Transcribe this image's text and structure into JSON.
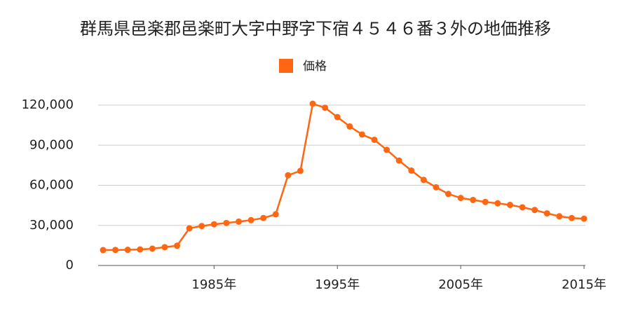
{
  "chart_data": {
    "type": "line",
    "title": "群馬県邑楽郡邑楽町大字中野字下宿４５４６番３外の地価推移",
    "x": [
      1976,
      1977,
      1978,
      1979,
      1980,
      1981,
      1982,
      1983,
      1984,
      1985,
      1986,
      1987,
      1988,
      1989,
      1990,
      1991,
      1992,
      1993,
      1994,
      1995,
      1996,
      1997,
      1998,
      1999,
      2000,
      2001,
      2002,
      2003,
      2004,
      2005,
      2006,
      2007,
      2008,
      2009,
      2010,
      2011,
      2012,
      2013,
      2014,
      2015
    ],
    "series": [
      {
        "name": "価格",
        "color": "#ff6611",
        "values": [
          11500,
          11600,
          11700,
          12000,
          12600,
          13700,
          14800,
          27800,
          29500,
          30800,
          31800,
          32800,
          33900,
          35500,
          38300,
          67500,
          70800,
          121000,
          118000,
          111000,
          104000,
          98000,
          94000,
          86500,
          78500,
          71000,
          64000,
          58500,
          53500,
          50500,
          49000,
          47500,
          46500,
          45300,
          43500,
          41500,
          39000,
          36800,
          35500,
          35000
        ]
      }
    ],
    "xlim": [
      1976,
      2015
    ],
    "xticks": [
      {
        "value": 1985,
        "label": "1985年"
      },
      {
        "value": 1995,
        "label": "1995年"
      },
      {
        "value": 2005,
        "label": "2005年"
      },
      {
        "value": 2015,
        "label": "2015年"
      }
    ],
    "ylim": [
      0,
      120000
    ],
    "yticks": [
      0,
      {
        "value": 30000,
        "label": "30,000"
      },
      {
        "value": 60000,
        "label": "60,000"
      },
      {
        "value": 90000,
        "label": "90,000"
      },
      {
        "value": 120000,
        "label": "120,000"
      }
    ],
    "grid": true,
    "legend": "top"
  }
}
